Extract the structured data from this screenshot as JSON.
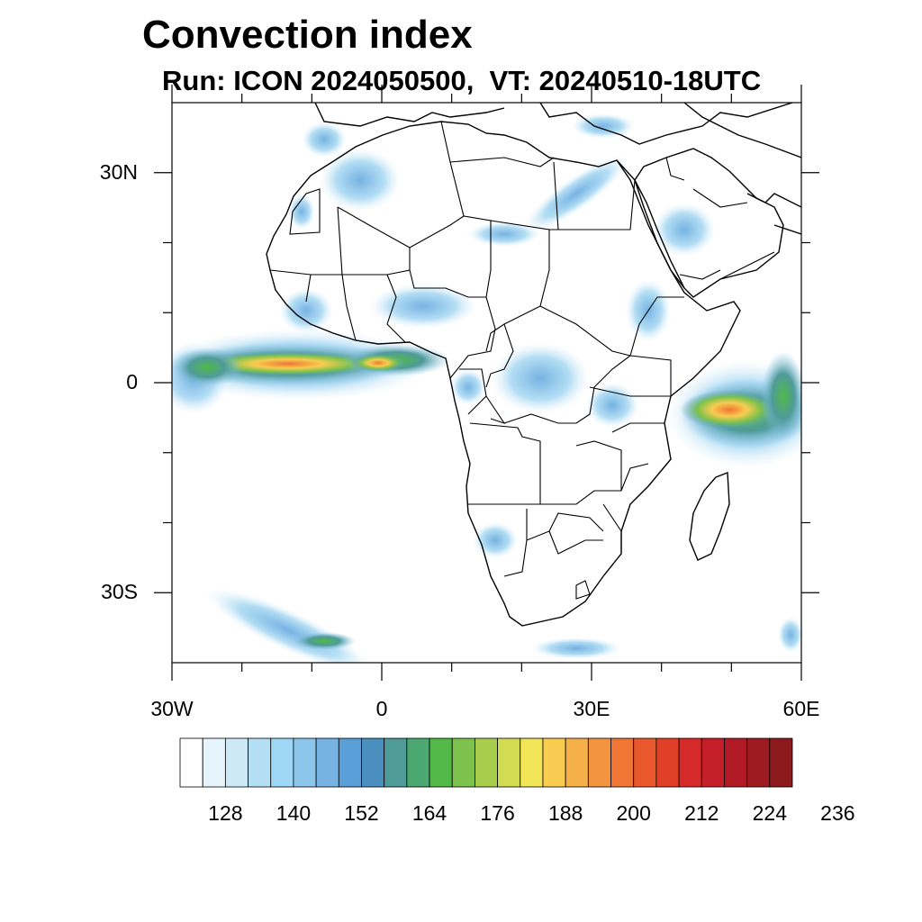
{
  "title": "Convection index",
  "subtitle": "Run: ICON 2024050500,  VT: 20240510-18UTC",
  "map": {
    "lat_labels": [
      {
        "lat": 30,
        "text": "30N"
      },
      {
        "lat": 0,
        "text": "0"
      },
      {
        "lat": -30,
        "text": "30S"
      }
    ],
    "lon_labels": [
      {
        "lon": -30,
        "text": "30W"
      },
      {
        "lon": 0,
        "text": "0"
      },
      {
        "lon": 30,
        "text": "30E"
      },
      {
        "lon": 60,
        "text": "60E"
      }
    ],
    "lon_range": [
      -30,
      60
    ],
    "lat_range": [
      -40,
      40
    ]
  },
  "colorbar": {
    "colors": [
      "#ffffff",
      "#e6f4fc",
      "#cde9f8",
      "#b4def4",
      "#9ed6f5",
      "#8cc6eb",
      "#76b3e3",
      "#5a9ed8",
      "#4a8fbe",
      "#4f9b9a",
      "#4aa870",
      "#52b848",
      "#7cc24c",
      "#a8cc4c",
      "#d1dc52",
      "#f1e456",
      "#f8cc50",
      "#f6b04a",
      "#f39540",
      "#ef7634",
      "#e8582c",
      "#e04028",
      "#d62a2a",
      "#c41e28",
      "#b01a24",
      "#9c1a20",
      "#8c1a1c"
    ],
    "labels": [
      "128",
      "140",
      "152",
      "164",
      "176",
      "188",
      "200",
      "212",
      "224",
      "236"
    ]
  }
}
